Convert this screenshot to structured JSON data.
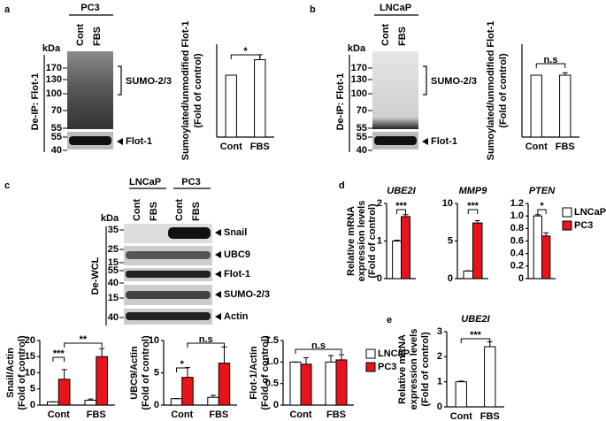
{
  "panel_a": {
    "letter": "a",
    "cell_line": "PC3",
    "lanes": [
      "Cont",
      "FBS"
    ],
    "kda": "kDa",
    "markers": [
      "170",
      "130",
      "100",
      "70",
      "55",
      "55",
      "40"
    ],
    "bracket_label": "SUMO-2/3",
    "arrow_label": "Flot-1",
    "side_label": "De-IP: Flot-1"
  },
  "panel_b": {
    "letter": "b",
    "cell_line": "LNCaP",
    "lanes": [
      "Cont",
      "FBS"
    ],
    "kda": "kDa",
    "markers": [
      "170",
      "130",
      "100",
      "70",
      "55",
      "55",
      "40"
    ],
    "bracket_label": "SUMO-2/3",
    "arrow_label": "Flot-1",
    "side_label": "De-IP: Flot-1"
  },
  "panel_c": {
    "letter": "c",
    "cell_lines": [
      "LNCaP",
      "PC3"
    ],
    "lanes": [
      "Cont",
      "FBS",
      "Cont",
      "FBS"
    ],
    "kda": "kDa",
    "markers": [
      "35",
      "25",
      "15",
      "55",
      "40",
      "15",
      "40"
    ],
    "bands": [
      "Snail",
      "UBC9",
      "Flot-1",
      "SUMO-2/3",
      "Actin"
    ],
    "side_label": "De-WCL"
  },
  "panel_d": {
    "letter": "d"
  },
  "panel_e": {
    "letter": "e"
  },
  "chart_data": [
    {
      "type": "bar",
      "ylabel": [
        "Sumoylated/unmodified Flot-1",
        "(Fold of control)"
      ],
      "categories": [
        "Cont",
        "FBS"
      ],
      "values": [
        1,
        1.25
      ],
      "errors": [
        0,
        0.08
      ],
      "color": "#ffffff",
      "ylim": [
        0,
        1.5
      ],
      "annotations": [
        "*"
      ]
    },
    {
      "type": "bar",
      "ylabel": [
        "Sumoylated/unmodified Flot-1",
        "(Fold of control)"
      ],
      "categories": [
        "Cont",
        "FBS"
      ],
      "values": [
        1,
        1
      ],
      "errors": [
        0,
        0.04
      ],
      "color": "#ffffff",
      "ylim": [
        0,
        1.5
      ],
      "annotations": [
        "n.s"
      ]
    },
    {
      "type": "bar",
      "ylabel": [
        "Snail/Actin",
        "(Fold of control)"
      ],
      "categories": [
        "Cont",
        "FBS"
      ],
      "series": [
        {
          "color": "#ffffff",
          "values": [
            1,
            1.5
          ],
          "errors": [
            0,
            0.4
          ]
        },
        {
          "color": "#e8141c",
          "values": [
            8,
            15
          ],
          "errors": [
            3,
            2.5
          ]
        }
      ],
      "ylim": [
        0,
        20
      ],
      "yticks": [
        0,
        5,
        10,
        15,
        20
      ],
      "annotations": [
        "***",
        "**"
      ]
    },
    {
      "type": "bar",
      "ylabel": [
        "UBC9/Actin",
        "(Fold of control)"
      ],
      "categories": [
        "Cont",
        "FBS"
      ],
      "series": [
        {
          "color": "#ffffff",
          "values": [
            1,
            1.2
          ],
          "errors": [
            0,
            0.3
          ]
        },
        {
          "color": "#e8141c",
          "values": [
            4.3,
            6.5
          ],
          "errors": [
            1.5,
            2.5
          ]
        }
      ],
      "ylim": [
        0,
        10
      ],
      "yticks": [
        0,
        5,
        10
      ],
      "annotations": [
        "*",
        "n.s"
      ]
    },
    {
      "type": "bar",
      "ylabel": [
        "Flot-1/Actin",
        "(Fold of control)"
      ],
      "categories": [
        "Cont",
        "FBS"
      ],
      "series": [
        {
          "name": "LNCaP",
          "color": "#ffffff",
          "values": [
            1,
            1
          ],
          "errors": [
            0,
            0.15
          ]
        },
        {
          "name": "PC3",
          "color": "#e8141c",
          "values": [
            0.95,
            1.05
          ],
          "errors": [
            0.15,
            0.12
          ]
        }
      ],
      "ylim": [
        0,
        1.5
      ],
      "yticks": [
        0,
        0.5,
        {
          "value": 1,
          "label": "1.0"
        },
        1.5
      ],
      "legend": "right",
      "annotations": [
        "n.s"
      ]
    },
    {
      "type": "bar",
      "title": "UBE2I",
      "ylabel": [
        "Relative mRNA",
        "expression levels",
        "(Fold of control)"
      ],
      "series": [
        {
          "color": "#ffffff",
          "values": [
            1
          ],
          "errors": [
            0.02
          ]
        },
        {
          "color": "#e8141c",
          "values": [
            1.65
          ],
          "errors": [
            0.05
          ]
        }
      ],
      "categories": [
        null
      ],
      "ylim": [
        0,
        2
      ],
      "yticks": [
        0,
        1,
        2
      ],
      "annotations": [
        "***"
      ]
    },
    {
      "type": "bar",
      "title": "MMP9",
      "series": [
        {
          "color": "#ffffff",
          "values": [
            1
          ],
          "errors": [
            0.05
          ]
        },
        {
          "color": "#e8141c",
          "values": [
            7.4
          ],
          "errors": [
            0.3
          ]
        }
      ],
      "categories": [
        null
      ],
      "ylim": [
        0,
        10
      ],
      "yticks": [
        0,
        5,
        10
      ],
      "annotations": [
        "***"
      ]
    },
    {
      "type": "bar",
      "title": "PTEN",
      "series": [
        {
          "name": "LNCaP",
          "color": "#ffffff",
          "values": [
            1
          ],
          "errors": [
            0.02
          ]
        },
        {
          "name": "PC3",
          "color": "#e8141c",
          "values": [
            0.68
          ],
          "errors": [
            0.05
          ]
        }
      ],
      "categories": [
        null
      ],
      "ylim": [
        0,
        1.2
      ],
      "yticks": [
        0,
        {
          "value": 0.2,
          "label": "0.2"
        },
        {
          "value": 0.4,
          "label": "0.4"
        },
        {
          "value": 0.6,
          "label": "0.6"
        },
        {
          "value": 0.8,
          "label": "0.8"
        },
        {
          "value": 1,
          "label": "1.0"
        },
        {
          "value": 1.2,
          "label": "1.2"
        }
      ],
      "legend": "right",
      "annotations": [
        "*"
      ]
    },
    {
      "type": "bar",
      "title": "UBE2I",
      "ylabel": [
        "Relative mRNA",
        "expression levels",
        "(Fold of control)"
      ],
      "categories": [
        "Cont",
        "FBS"
      ],
      "values": [
        1,
        2.4
      ],
      "errors": [
        0.03,
        0.2
      ],
      "color": "#ffffff",
      "ylim": [
        0,
        3
      ],
      "yticks": [
        0,
        1,
        2,
        3
      ],
      "annotations": [
        "***"
      ]
    }
  ]
}
